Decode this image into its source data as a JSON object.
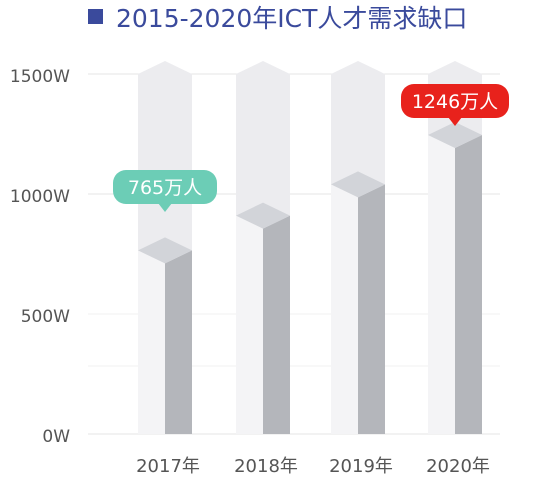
{
  "title": "2015-2020年ICT人才需求缺口",
  "colors": {
    "title_text": "#3a4a9c",
    "title_marker": "#3a4a9c",
    "ghost_column": "#ececef",
    "bar_front": "#f4f4f6",
    "bar_side": "#b4b6bb",
    "bar_top": "#d2d4d9",
    "label_green": "#6ccdb6",
    "label_red": "#e8221c",
    "axis_text": "#555555",
    "grid": "#e6e6e6"
  },
  "chart_data": {
    "type": "bar",
    "title": "2015-2020年ICT人才需求缺口",
    "categories": [
      "2017年",
      "2018年",
      "2019年",
      "2020年"
    ],
    "values": [
      765,
      910,
      1040,
      1246
    ],
    "unit": "万人",
    "ylim": [
      0,
      1500
    ],
    "yticks": [
      "0W",
      "500W",
      "1000W",
      "1500W"
    ],
    "grid": true,
    "annotations": [
      {
        "category": "2017年",
        "text": "765万人",
        "style": "green"
      },
      {
        "category": "2020年",
        "text": "1246万人",
        "style": "red"
      }
    ]
  }
}
